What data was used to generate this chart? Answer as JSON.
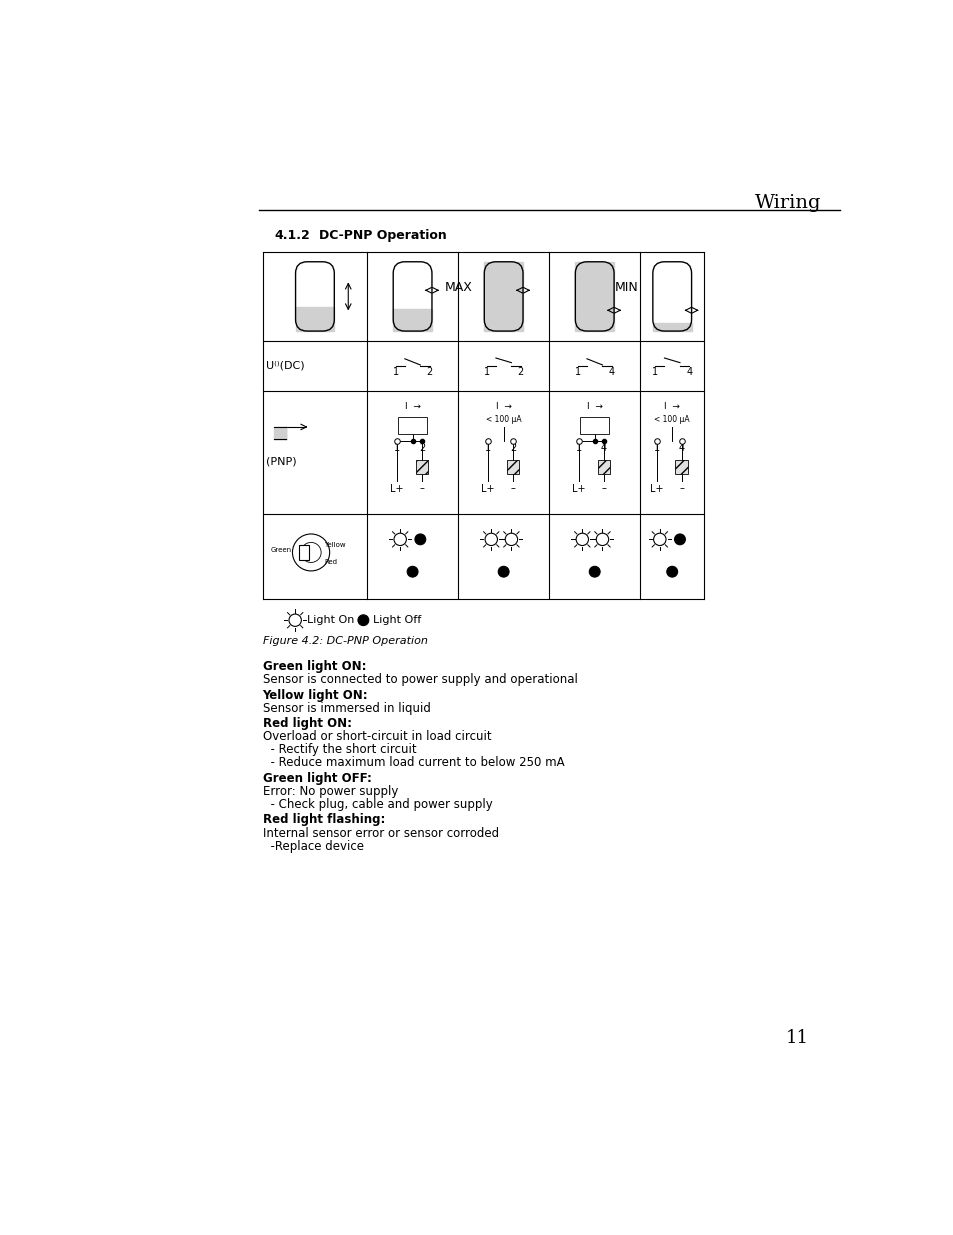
{
  "title": "Wiring",
  "section": "4.1.2",
  "section_title": "DC-PNP Operation",
  "page_number": "11",
  "figure_caption": "Figure 4.2: DC-PNP Operation",
  "legend_light_on": "Light On",
  "legend_light_off": "Light Off",
  "text_blocks": [
    {
      "label": "Green light ON:",
      "text": "Sensor is connected to power supply and operational"
    },
    {
      "label": "Yellow light ON:",
      "text": "Sensor is immersed in liquid"
    },
    {
      "label": "Red light ON:",
      "text": "Overload or short-circuit in load circuit\n  - Rectify the short circuit\n  - Reduce maximum load current to below 250 mA"
    },
    {
      "label": "Green light OFF:",
      "text": "Error: No power supply\n  - Check plug, cable and power supply"
    },
    {
      "label": "Red light flashing:",
      "text": "Internal sensor error or sensor corroded\n  -Replace device"
    }
  ],
  "bg_color": "#ffffff",
  "line_color": "#000000",
  "gray_color": "#c8c8c8",
  "text_color": "#000000"
}
